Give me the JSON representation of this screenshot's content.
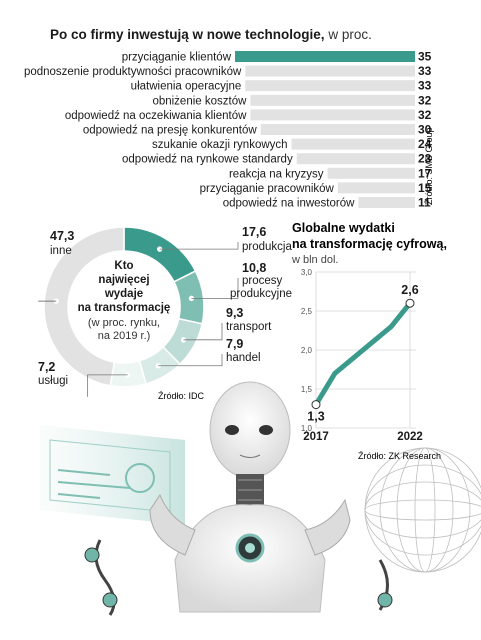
{
  "bar_section": {
    "title_bold": "Po co firmy inwestują w nowe technologie,",
    "title_unit": "w proc.",
    "source": "Źródło: SMB Group"
  },
  "donut_section": {
    "center_lines": [
      "Kto",
      "najwięcej",
      "wydaje",
      "na transformację"
    ],
    "center_sub_lines": [
      "(w proc. rynku,",
      "na 2019 r.)"
    ],
    "source": "Źródło: IDC"
  },
  "line_section": {
    "title_lines": [
      "Globalne wydatki",
      "na transformację cyfrową,"
    ],
    "unit": "w bln dol.",
    "source": "Źródło: ZK Research"
  },
  "colors": {
    "teal": "#3a9b8c",
    "teal_light": "#7fbfb3",
    "teal_pale": "#bcdcd5",
    "teal_faint": "#d8ebe7",
    "gray": "#e2e2e2",
    "text": "#1a1a1a"
  },
  "chart_data": [
    {
      "type": "bar",
      "orientation": "horizontal",
      "categories": [
        "przyciąganie klientów",
        "podnoszenie produktywności pracowników",
        "ułatwienia operacyjne",
        "obniżenie kosztów",
        "odpowiedź na oczekiwania klientów",
        "odpowiedź na presję konkurentów",
        "szukanie okazji rynkowych",
        "odpowiedź na rynkowe standardy",
        "reakcja na kryzysy",
        "przyciąganie pracowników",
        "odpowiedź na inwestorów"
      ],
      "values": [
        35,
        33,
        33,
        32,
        32,
        30,
        24,
        23,
        17,
        15,
        11
      ],
      "highlight_index": 0
    },
    {
      "type": "pie",
      "variant": "donut",
      "slices": [
        {
          "value": 17.6,
          "label": "17,6",
          "name": "produkcja"
        },
        {
          "value": 10.8,
          "label": "10,8",
          "name": "procesy produkcyjne"
        },
        {
          "value": 9.3,
          "label": "9,3",
          "name": "transport"
        },
        {
          "value": 7.9,
          "label": "7,9",
          "name": "handel"
        },
        {
          "value": 7.2,
          "label": "7,2",
          "name": "usługi"
        },
        {
          "value": 47.3,
          "label": "47,3",
          "name": "inne"
        }
      ]
    },
    {
      "type": "line",
      "x": [
        2017,
        2018,
        2019,
        2020,
        2021,
        2022
      ],
      "y": [
        1.3,
        1.7,
        1.9,
        2.1,
        2.3,
        2.6
      ],
      "x_tick_labels": [
        "2017",
        "2022"
      ],
      "y_ticks": [
        "1,0",
        "1,5",
        "2,0",
        "2,5",
        "3,0"
      ],
      "ylim": [
        1.0,
        3.0
      ],
      "end_labels": [
        "1,3",
        "2,6"
      ]
    }
  ]
}
